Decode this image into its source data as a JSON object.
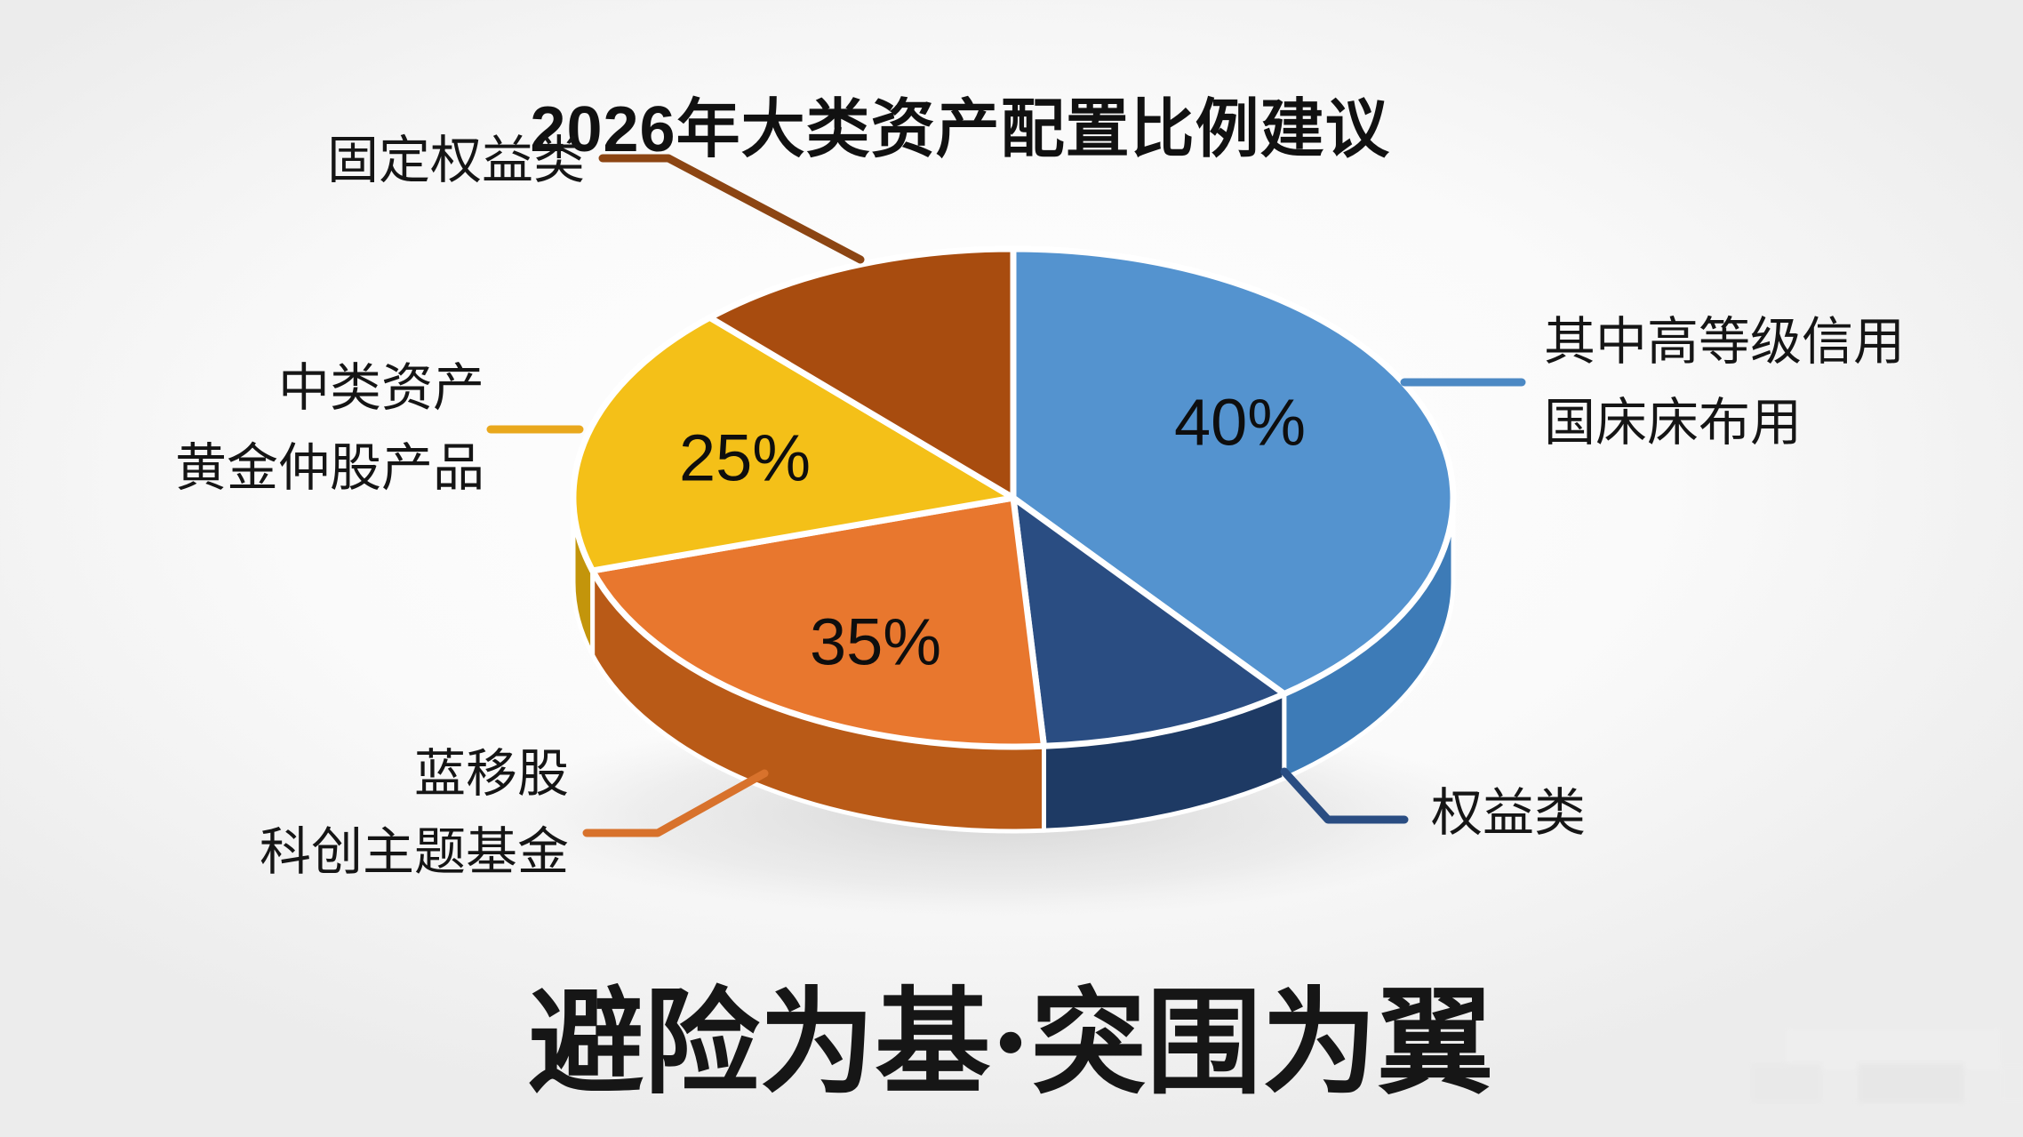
{
  "page": {
    "title": "2026年大类资产配置比例建议",
    "slogan": "避险为基·突围为翼"
  },
  "chart_data": {
    "type": "pie",
    "is_3d": true,
    "title": "2026年大类资产配置比例建议",
    "footer_slogan": "避险为基·突围为翼",
    "legend_position": "callout-labels",
    "slices": [
      {
        "callout_lines": [
          "其中高等级信用",
          "国床床布用"
        ],
        "percent_label": "40%",
        "value_pct": 40,
        "color": "#5493CF",
        "side_color": "#3D7BB7",
        "connector_color": "#4C89C4",
        "drawn_start_deg": 90,
        "drawn_end_deg": -52
      },
      {
        "callout_lines": [
          "权益类"
        ],
        "percent_label": "",
        "value_pct": null,
        "color": "#2A4D82",
        "side_color": "#1E3A64",
        "connector_color": "#2A4D82",
        "drawn_start_deg": -52,
        "drawn_end_deg": -86
      },
      {
        "callout_lines": [
          "蓝移股",
          "科创主题基金"
        ],
        "percent_label": "35%",
        "value_pct": 35,
        "color": "#E8772E",
        "side_color": "#B95A17",
        "connector_color": "#D8722C",
        "drawn_start_deg": -86,
        "drawn_end_deg": -163
      },
      {
        "callout_lines": [
          "中类资产",
          "黄金仲股产品"
        ],
        "percent_label": "25%",
        "value_pct": 25,
        "color": "#F4C018",
        "side_color": "#C3950B",
        "connector_color": "#E9A81D",
        "drawn_start_deg": -163,
        "drawn_end_deg": -226.4
      },
      {
        "callout_lines": [
          "固定权益类"
        ],
        "percent_label": "",
        "value_pct": null,
        "color": "#A84C0F",
        "side_color": "#7E3708",
        "connector_color": "#8C4513",
        "drawn_start_deg": -226.4,
        "drawn_end_deg": -270
      }
    ]
  }
}
